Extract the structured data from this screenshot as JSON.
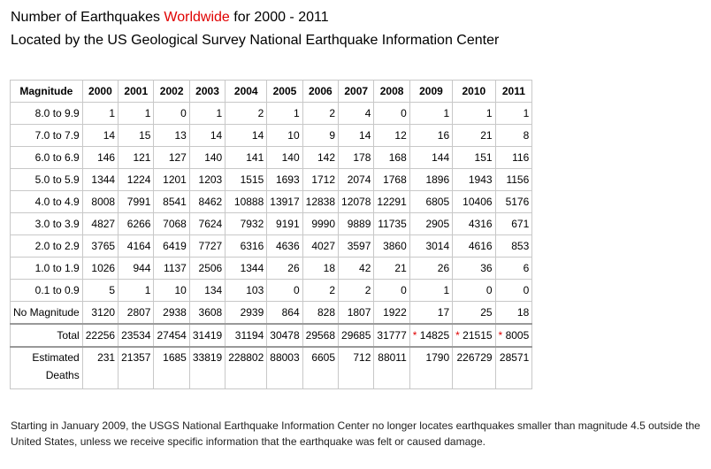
{
  "title": {
    "prefix": "Number of Earthquakes ",
    "highlight": "Worldwide",
    "suffix": " for 2000 - 2011"
  },
  "subtitle": "Located by the US Geological Survey National Earthquake Information Center",
  "table": {
    "header_label": "Magnitude",
    "years": [
      "2000",
      "2001",
      "2002",
      "2003",
      "2004",
      "2005",
      "2006",
      "2007",
      "2008",
      "2009",
      "2010",
      "2011"
    ],
    "rows": [
      {
        "magnitude": "8.0 to 9.9",
        "values": [
          "1",
          "1",
          "0",
          "1",
          "2",
          "1",
          "2",
          "4",
          "0",
          "1",
          "1",
          "1"
        ]
      },
      {
        "magnitude": "7.0 to 7.9",
        "values": [
          "14",
          "15",
          "13",
          "14",
          "14",
          "10",
          "9",
          "14",
          "12",
          "16",
          "21",
          "8"
        ]
      },
      {
        "magnitude": "6.0 to 6.9",
        "values": [
          "146",
          "121",
          "127",
          "140",
          "141",
          "140",
          "142",
          "178",
          "168",
          "144",
          "151",
          "116"
        ]
      },
      {
        "magnitude": "5.0 to 5.9",
        "values": [
          "1344",
          "1224",
          "1201",
          "1203",
          "1515",
          "1693",
          "1712",
          "2074",
          "1768",
          "1896",
          "1943",
          "1156"
        ]
      },
      {
        "magnitude": "4.0 to 4.9",
        "values": [
          "8008",
          "7991",
          "8541",
          "8462",
          "10888",
          "13917",
          "12838",
          "12078",
          "12291",
          "6805",
          "10406",
          "5176"
        ]
      },
      {
        "magnitude": "3.0 to 3.9",
        "values": [
          "4827",
          "6266",
          "7068",
          "7624",
          "7932",
          "9191",
          "9990",
          "9889",
          "11735",
          "2905",
          "4316",
          "671"
        ]
      },
      {
        "magnitude": "2.0 to 2.9",
        "values": [
          "3765",
          "4164",
          "6419",
          "7727",
          "6316",
          "4636",
          "4027",
          "3597",
          "3860",
          "3014",
          "4616",
          "853"
        ]
      },
      {
        "magnitude": "1.0 to 1.9",
        "values": [
          "1026",
          "944",
          "1137",
          "2506",
          "1344",
          "26",
          "18",
          "42",
          "21",
          "26",
          "36",
          "6"
        ]
      },
      {
        "magnitude": "0.1 to 0.9",
        "values": [
          "5",
          "1",
          "10",
          "134",
          "103",
          "0",
          "2",
          "2",
          "0",
          "1",
          "0",
          "0"
        ]
      },
      {
        "magnitude": "No Magnitude",
        "values": [
          "3120",
          "2807",
          "2938",
          "3608",
          "2939",
          "864",
          "828",
          "1807",
          "1922",
          "17",
          "25",
          "18"
        ]
      }
    ],
    "total": {
      "label": "Total",
      "values": [
        "22256",
        "23534",
        "27454",
        "31419",
        "31194",
        "30478",
        "29568",
        "29685",
        "31777",
        "14825",
        "21515",
        "8005"
      ],
      "starred": [
        false,
        false,
        false,
        false,
        false,
        false,
        false,
        false,
        false,
        true,
        true,
        true
      ],
      "star_symbol": "*"
    },
    "deaths": {
      "label_line1": "Estimated",
      "label_line2": "Deaths",
      "values": [
        "231",
        "21357",
        "1685",
        "33819",
        "228802",
        "88003",
        "6605",
        "712",
        "88011",
        "1790",
        "226729",
        "28571"
      ]
    },
    "colors": {
      "star": "#e00000",
      "highlight": "#e00000",
      "border": "#c8c8c8"
    }
  },
  "footnote": "Starting in January 2009, the USGS National Earthquake Information Center no longer locates earthquakes smaller than magnitude 4.5 outside the United States, unless we receive specific information that the earthquake was felt or caused damage."
}
